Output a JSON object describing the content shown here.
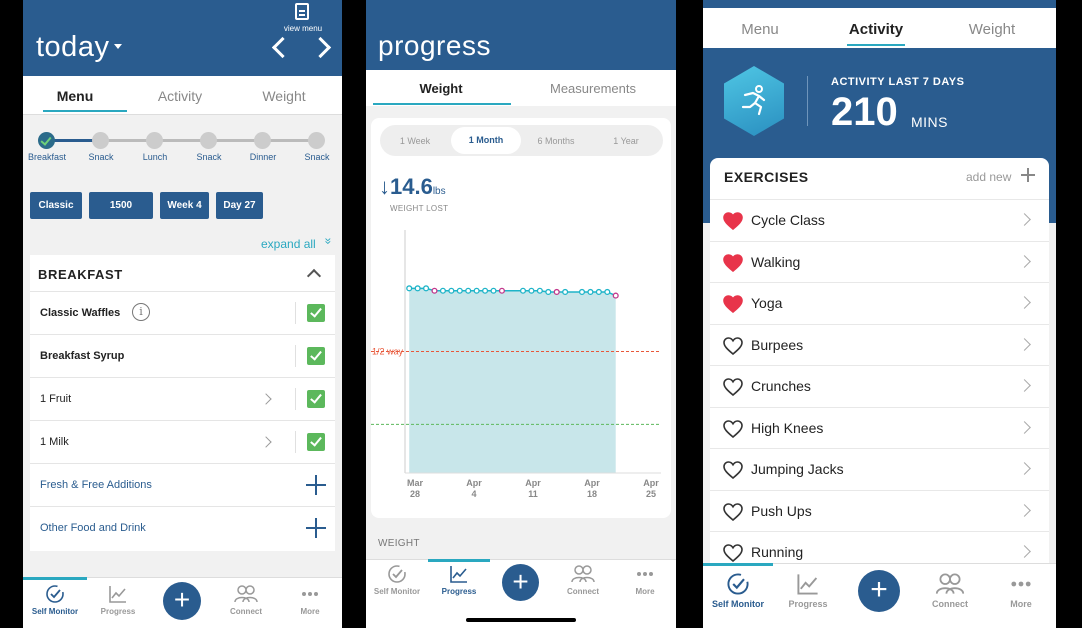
{
  "screen1": {
    "title": "today",
    "view_menu_label": "view menu",
    "tabs": [
      {
        "label": "Menu"
      },
      {
        "label": "Activity"
      },
      {
        "label": "Weight"
      }
    ],
    "meals": [
      "Breakfast",
      "Snack",
      "Lunch",
      "Snack",
      "Dinner",
      "Snack"
    ],
    "chips": [
      "Classic",
      "1500",
      "Week 4",
      "Day 27"
    ],
    "expand_all": "expand all",
    "expand_glyph": "»",
    "card_title": "BREAKFAST",
    "rows": [
      {
        "label": "Classic Waffles",
        "info": "i"
      },
      {
        "label": "Breakfast Syrup"
      },
      {
        "label": "1 Fruit"
      },
      {
        "label": "1 Milk"
      },
      {
        "label": "Fresh & Free Additions"
      },
      {
        "label": "Other Food and Drink"
      }
    ],
    "nav": [
      {
        "label": "Self Monitor"
      },
      {
        "label": "Progress"
      },
      {
        "label": "+"
      },
      {
        "label": "Connect"
      },
      {
        "label": "More"
      }
    ]
  },
  "screen2": {
    "title": "progress",
    "tabs": [
      {
        "label": "Weight"
      },
      {
        "label": "Measurements"
      }
    ],
    "ranges": [
      "1 Week",
      "1 Month",
      "6 Months",
      "1 Year"
    ],
    "weight_lost_arrow": "↓",
    "weight_lost_value": "14.6",
    "weight_lost_unit": "lbs",
    "weight_lost_label": "WEIGHT LOST",
    "half_way_label": "1/2 way",
    "section_label": "WEIGHT",
    "nav": [
      {
        "label": "Self Monitor"
      },
      {
        "label": "Progress"
      },
      {
        "label": "+"
      },
      {
        "label": "Connect"
      },
      {
        "label": "More"
      }
    ]
  },
  "chart_data": {
    "type": "area",
    "title": "",
    "xlabel": "",
    "ylabel": "",
    "x_tick_labels": [
      {
        "month": "Mar",
        "day": "28"
      },
      {
        "month": "Apr",
        "day": "4"
      },
      {
        "month": "Apr",
        "day": "11"
      },
      {
        "month": "Apr",
        "day": "18"
      },
      {
        "month": "Apr",
        "day": "25"
      }
    ],
    "x_range_days": [
      0,
      28
    ],
    "y_range": [
      0,
      100
    ],
    "grid": false,
    "series": [
      {
        "values": [
          {
            "x": 0.5,
            "y": 76,
            "highlight": false
          },
          {
            "x": 1.5,
            "y": 76,
            "highlight": false
          },
          {
            "x": 2.5,
            "y": 76,
            "highlight": false
          },
          {
            "x": 3.5,
            "y": 75,
            "highlight": true
          },
          {
            "x": 4.5,
            "y": 75,
            "highlight": false
          },
          {
            "x": 5.5,
            "y": 75,
            "highlight": false
          },
          {
            "x": 6.5,
            "y": 75,
            "highlight": false
          },
          {
            "x": 7.5,
            "y": 75,
            "highlight": false
          },
          {
            "x": 8.5,
            "y": 75,
            "highlight": false
          },
          {
            "x": 9.5,
            "y": 75,
            "highlight": false
          },
          {
            "x": 10.5,
            "y": 75,
            "highlight": false
          },
          {
            "x": 11.5,
            "y": 75,
            "highlight": true
          },
          {
            "x": 14,
            "y": 75,
            "highlight": false
          },
          {
            "x": 15,
            "y": 75,
            "highlight": false
          },
          {
            "x": 16,
            "y": 75,
            "highlight": false
          },
          {
            "x": 17,
            "y": 74.5,
            "highlight": false
          },
          {
            "x": 18,
            "y": 74.5,
            "highlight": true
          },
          {
            "x": 19,
            "y": 74.5,
            "highlight": false
          },
          {
            "x": 21,
            "y": 74.5,
            "highlight": false
          },
          {
            "x": 22,
            "y": 74.5,
            "highlight": false
          },
          {
            "x": 23,
            "y": 74.5,
            "highlight": false
          },
          {
            "x": 24,
            "y": 74.5,
            "highlight": false
          },
          {
            "x": 25,
            "y": 73,
            "highlight": true
          }
        ]
      }
    ],
    "reference_lines": [
      {
        "label": "1/2 way",
        "y": 50,
        "color": "#e8583a"
      },
      {
        "label": "",
        "y": 20,
        "color": "#5cb85c"
      }
    ],
    "colors": {
      "line": "#1eb4c8",
      "fill": "#c8e6ea",
      "highlight": "#c2378c"
    }
  },
  "screen3": {
    "tabs": [
      {
        "label": "Menu"
      },
      {
        "label": "Activity"
      },
      {
        "label": "Weight"
      }
    ],
    "activity_label": "ACTIVITY LAST 7 DAYS",
    "activity_value": "210",
    "activity_unit": "MINS",
    "exercises_title": "EXERCISES",
    "add_new": "add new",
    "exercises": [
      {
        "name": "Cycle Class",
        "favorite": true
      },
      {
        "name": "Walking",
        "favorite": true
      },
      {
        "name": "Yoga",
        "favorite": true
      },
      {
        "name": "Burpees",
        "favorite": false
      },
      {
        "name": "Crunches",
        "favorite": false
      },
      {
        "name": "High Knees",
        "favorite": false
      },
      {
        "name": "Jumping Jacks",
        "favorite": false
      },
      {
        "name": "Push Ups",
        "favorite": false
      },
      {
        "name": "Running",
        "favorite": false
      }
    ],
    "nav": [
      {
        "label": "Self Monitor"
      },
      {
        "label": "Progress"
      },
      {
        "label": "+"
      },
      {
        "label": "Connect"
      },
      {
        "label": "More"
      }
    ]
  },
  "colors": {
    "primary": "#2a5c8f",
    "accent": "#2aa8c0",
    "check": "#5cb85c",
    "heart": "#e8344a"
  }
}
